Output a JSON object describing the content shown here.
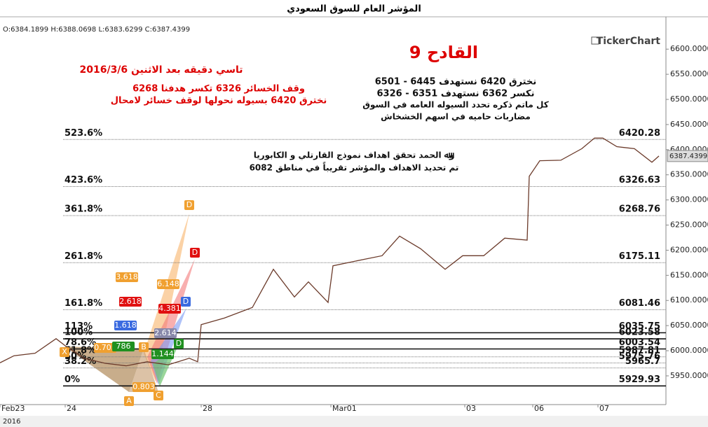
{
  "chart_data": {
    "type": "line",
    "title": "المؤشر العام للسوق السعودي",
    "ohlc": "O:6384.1899 H:6388.0698 L:6383.6299 C:6387.4399",
    "watermark": "TickerChart",
    "year": "2016",
    "x": [
      0,
      2,
      5,
      8,
      9.3,
      12,
      15,
      18,
      21,
      24,
      27,
      28.2,
      28.7,
      32,
      36,
      39,
      42,
      44,
      46.8,
      47.5,
      52,
      54.5,
      57,
      60,
      63.5,
      66,
      69,
      72,
      75.2,
      75.5,
      77,
      80,
      83,
      84.8,
      86,
      88,
      90.5,
      93,
      94
    ],
    "values": [
      5976,
      5990,
      5995,
      6024,
      6010,
      5985,
      5975,
      5970,
      5978,
      5972,
      5985,
      5978,
      6052,
      6065,
      6086,
      6162,
      6107,
      6137,
      6096,
      6169,
      6182,
      6189,
      6228,
      6203,
      6162,
      6189,
      6189,
      6224,
      6220,
      6347,
      6378,
      6379,
      6402,
      6423,
      6423,
      6406,
      6402,
      6375,
      6387.4399
    ],
    "color": "#6b3a2a",
    "xlim": [
      0,
      95
    ],
    "xticks": [
      {
        "value": 0,
        "label": "Feb23"
      },
      {
        "value": 9.3,
        "label": "24"
      },
      {
        "value": 28.7,
        "label": "28"
      },
      {
        "value": 47.2,
        "label": "Mar01"
      },
      {
        "value": 66.3,
        "label": "03"
      },
      {
        "value": 76,
        "label": "06"
      },
      {
        "value": 85.3,
        "label": "07"
      }
    ],
    "ylim": [
      5897,
      6656
    ],
    "yticks": [
      {
        "value": 5950,
        "label": "5950.0000"
      },
      {
        "value": 6000,
        "label": "6000.0000"
      },
      {
        "value": 6050,
        "label": "6050.0000"
      },
      {
        "value": 6100,
        "label": "6100.0000"
      },
      {
        "value": 6150,
        "label": "6150.0000"
      },
      {
        "value": 6200,
        "label": "6200.0000"
      },
      {
        "value": 6250,
        "label": "6250.0000"
      },
      {
        "value": 6300,
        "label": "6300.0000"
      },
      {
        "value": 6350,
        "label": "6350.0000"
      },
      {
        "value": 6400,
        "label": "6400.0000"
      },
      {
        "value": 6450,
        "label": "6450.0000"
      },
      {
        "value": 6500,
        "label": "6500.0000"
      },
      {
        "value": 6550,
        "label": "6550.0000"
      },
      {
        "value": 6600,
        "label": "6600.0000"
      }
    ],
    "last_price": 6387.4399,
    "levels": [
      {
        "label": "523.6%",
        "value": 6420.28
      },
      {
        "label": "423.6%",
        "value": 6326.63
      },
      {
        "label": "361.8%",
        "value": 6268.76
      },
      {
        "label": "261.8%",
        "value": 6175.11
      },
      {
        "label": "161.8%",
        "value": 6081.46
      },
      {
        "label": "113%",
        "value": 6035.75
      },
      {
        "label": "100%",
        "value": 6023.58
      },
      {
        "label": "78.6%",
        "value": 6003.54
      },
      {
        "label": "61.8%",
        "value": 5987.81
      },
      {
        "label": "50%",
        "value": 5975.76
      },
      {
        "label": "38.2%",
        "value": 5965.7
      },
      {
        "label": "0%",
        "value": 5929.93
      }
    ],
    "annotations": [
      "القادح 9",
      "تاسي دقيقه بعد الاثنين  2016/3/6",
      "وقف الخسائر 6326 تكسر هدفنا 6268",
      "نخترق 6420 بسيوله نحولها لوقف خسائر لامحال",
      "نخترق 6420  نستهدف 6445  -  6501",
      "نكسر 6362  نستهدف 6351  -  6326",
      "كل ماتم ذكره تحدد السيوله العامه في السوق",
      "مضاربات حاميه في اسهم الخشخاش",
      "وﷲ الحمد تحقق اهداف نموذج القارتلي و الكابوريا",
      "تم تحديد الاهداف والمؤشر تقريباً في مناطق 6082"
    ],
    "pattern_labels": [
      "X",
      "A",
      "B",
      "C",
      "D",
      "D",
      "D",
      "D",
      "3.618",
      "2.618",
      "1.618",
      "0.705",
      "786",
      "0.803",
      "6.148",
      "4.381",
      "2.614",
      "1.144"
    ]
  }
}
